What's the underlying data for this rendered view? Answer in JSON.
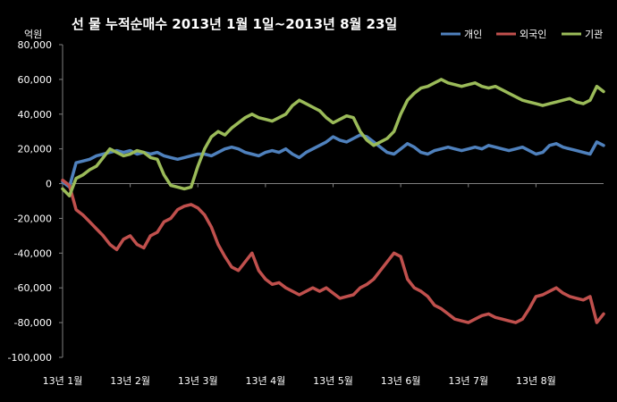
{
  "chart_data": {
    "type": "line",
    "title": "선 물 누적순매수 2013년 1월 1일~2013년 8월 23일",
    "unit": "억원",
    "ylim": [
      -100000,
      80000
    ],
    "yticks": [
      "80,000",
      "60,000",
      "40,000",
      "20,000",
      "0",
      "-20,000",
      "-40,000",
      "-60,000",
      "-80,000",
      "-100,000"
    ],
    "ytick_values": [
      80000,
      60000,
      40000,
      20000,
      0,
      -20000,
      -40000,
      -60000,
      -80000,
      -100000
    ],
    "xtick_labels": [
      "13년 1월",
      "13년 2월",
      "13년 3월",
      "13년 4월",
      "13년 5월",
      "13년 6월",
      "13년 7월",
      "13년 8월"
    ],
    "xlim": [
      0,
      160
    ],
    "xticks": [
      0,
      20,
      40,
      60,
      80,
      100,
      120,
      140
    ],
    "legend_position": "top-right",
    "grid": false,
    "series": [
      {
        "name": "개인",
        "color": "#4f81bd",
        "x": [
          0,
          2,
          4,
          6,
          8,
          10,
          12,
          14,
          16,
          18,
          20,
          22,
          24,
          26,
          28,
          30,
          32,
          34,
          36,
          38,
          40,
          42,
          44,
          46,
          48,
          50,
          52,
          54,
          56,
          58,
          60,
          62,
          64,
          66,
          68,
          70,
          72,
          74,
          76,
          78,
          80,
          82,
          84,
          86,
          88,
          90,
          92,
          94,
          96,
          98,
          100,
          102,
          104,
          106,
          108,
          110,
          112,
          114,
          116,
          118,
          120,
          122,
          124,
          126,
          128,
          130,
          132,
          134,
          136,
          138,
          140,
          142,
          144,
          146,
          148,
          150,
          152,
          154,
          156,
          158,
          160
        ],
        "values": [
          1000,
          -2000,
          12000,
          13000,
          14000,
          16000,
          17000,
          18000,
          19000,
          18000,
          19000,
          17000,
          18000,
          17000,
          18000,
          16000,
          15000,
          14000,
          15000,
          16000,
          17000,
          17000,
          16000,
          18000,
          20000,
          21000,
          20000,
          18000,
          17000,
          16000,
          18000,
          19000,
          18000,
          20000,
          17000,
          15000,
          18000,
          20000,
          22000,
          24000,
          27000,
          25000,
          24000,
          26000,
          28000,
          27000,
          24000,
          21000,
          18000,
          17000,
          20000,
          23000,
          21000,
          18000,
          17000,
          19000,
          20000,
          21000,
          20000,
          19000,
          20000,
          21000,
          20000,
          22000,
          21000,
          20000,
          19000,
          20000,
          21000,
          19000,
          17000,
          18000,
          22000,
          23000,
          21000,
          20000,
          19000,
          18000,
          17000,
          24000,
          22000
        ]
      },
      {
        "name": "외국인",
        "color": "#c0504d",
        "x": [
          0,
          2,
          4,
          6,
          8,
          10,
          12,
          14,
          16,
          18,
          20,
          22,
          24,
          26,
          28,
          30,
          32,
          34,
          36,
          38,
          40,
          42,
          44,
          46,
          48,
          50,
          52,
          54,
          56,
          58,
          60,
          62,
          64,
          66,
          68,
          70,
          72,
          74,
          76,
          78,
          80,
          82,
          84,
          86,
          88,
          90,
          92,
          94,
          96,
          98,
          100,
          102,
          104,
          106,
          108,
          110,
          112,
          114,
          116,
          118,
          120,
          122,
          124,
          126,
          128,
          130,
          132,
          134,
          136,
          138,
          140,
          142,
          144,
          146,
          148,
          150,
          152,
          154,
          156,
          158,
          160
        ],
        "values": [
          2000,
          -1000,
          -15000,
          -18000,
          -22000,
          -26000,
          -30000,
          -35000,
          -38000,
          -32000,
          -30000,
          -35000,
          -37000,
          -30000,
          -28000,
          -22000,
          -20000,
          -15000,
          -13000,
          -12000,
          -14000,
          -18000,
          -25000,
          -35000,
          -42000,
          -48000,
          -50000,
          -45000,
          -40000,
          -50000,
          -55000,
          -58000,
          -57000,
          -60000,
          -62000,
          -64000,
          -62000,
          -60000,
          -62000,
          -60000,
          -63000,
          -66000,
          -65000,
          -64000,
          -60000,
          -58000,
          -55000,
          -50000,
          -45000,
          -40000,
          -42000,
          -55000,
          -60000,
          -62000,
          -65000,
          -70000,
          -72000,
          -75000,
          -78000,
          -79000,
          -80000,
          -78000,
          -76000,
          -75000,
          -77000,
          -78000,
          -79000,
          -80000,
          -78000,
          -72000,
          -65000,
          -64000,
          -62000,
          -60000,
          -63000,
          -65000,
          -66000,
          -67000,
          -65000,
          -80000,
          -75000
        ]
      },
      {
        "name": "기관",
        "color": "#9bbb59",
        "x": [
          0,
          2,
          4,
          6,
          8,
          10,
          12,
          14,
          16,
          18,
          20,
          22,
          24,
          26,
          28,
          30,
          32,
          34,
          36,
          38,
          40,
          42,
          44,
          46,
          48,
          50,
          52,
          54,
          56,
          58,
          60,
          62,
          64,
          66,
          68,
          70,
          72,
          74,
          76,
          78,
          80,
          82,
          84,
          86,
          88,
          90,
          92,
          94,
          96,
          98,
          100,
          102,
          104,
          106,
          108,
          110,
          112,
          114,
          116,
          118,
          120,
          122,
          124,
          126,
          128,
          130,
          132,
          134,
          136,
          138,
          140,
          142,
          144,
          146,
          148,
          150,
          152,
          154,
          156,
          158,
          160
        ],
        "values": [
          -3000,
          -7000,
          3000,
          5000,
          8000,
          10000,
          15000,
          20000,
          18000,
          16000,
          17000,
          19000,
          18000,
          15000,
          14000,
          5000,
          -1000,
          -2000,
          -3000,
          -2000,
          10000,
          20000,
          27000,
          30000,
          28000,
          32000,
          35000,
          38000,
          40000,
          38000,
          37000,
          36000,
          38000,
          40000,
          45000,
          48000,
          46000,
          44000,
          42000,
          38000,
          35000,
          37000,
          39000,
          38000,
          30000,
          25000,
          22000,
          24000,
          26000,
          30000,
          40000,
          48000,
          52000,
          55000,
          56000,
          58000,
          60000,
          58000,
          57000,
          56000,
          57000,
          58000,
          56000,
          55000,
          56000,
          54000,
          52000,
          50000,
          48000,
          47000,
          46000,
          45000,
          46000,
          47000,
          48000,
          49000,
          47000,
          46000,
          48000,
          56000,
          53000
        ]
      }
    ]
  }
}
